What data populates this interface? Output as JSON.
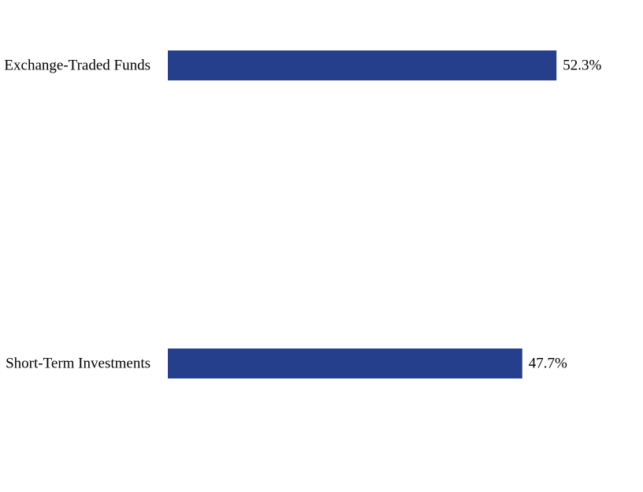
{
  "chart_data": {
    "type": "bar",
    "orientation": "horizontal",
    "categories": [
      "Exchange-Traded Funds",
      "Short-Term Investments"
    ],
    "values": [
      52.3,
      47.7
    ],
    "value_labels": [
      "52.3%",
      "47.7%"
    ],
    "unit": "%",
    "xlim": [
      0,
      55
    ],
    "grid": false,
    "legend": "none",
    "bar_color": "#253f8c"
  }
}
